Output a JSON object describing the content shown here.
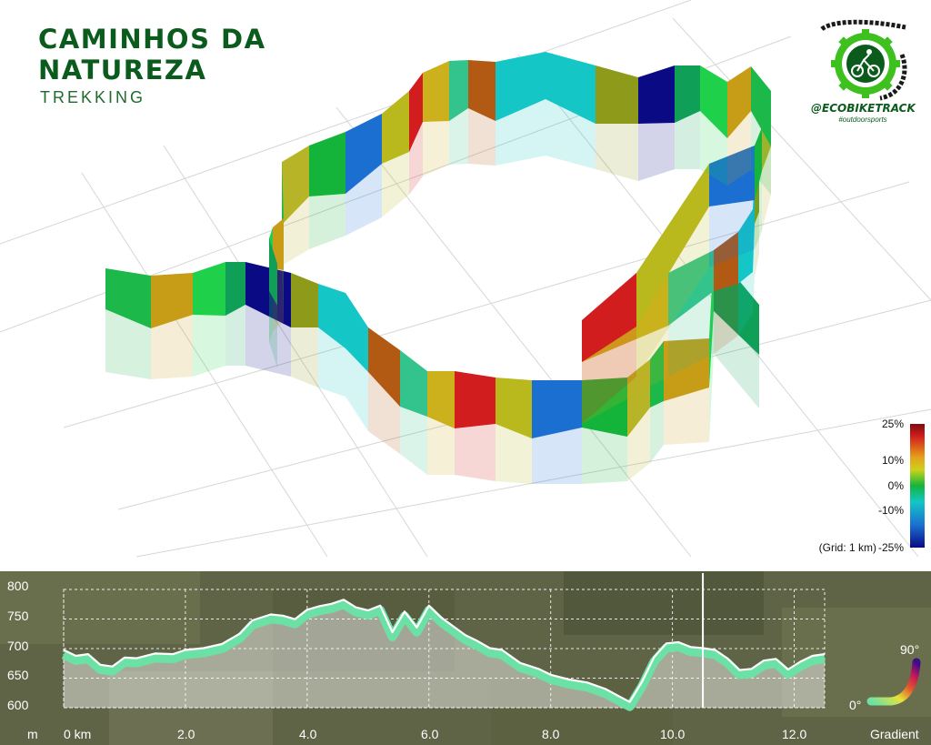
{
  "header": {
    "title_line1": "CAMINHOS DA",
    "title_line2": "NATUREZA",
    "subtitle": "TREKKING"
  },
  "logo": {
    "icon": "cyclist-gear-chain-icon",
    "handle": "@ECOBIKETRACK",
    "tagline": "#outdoorsports",
    "color": "#0b5b1d",
    "accent": "#3ec11f"
  },
  "legend": {
    "labels": [
      "25%",
      "10%",
      "0%",
      "-10%",
      "-25%"
    ],
    "grid_note": "(Grid: 1 km)"
  },
  "profile": {
    "y_unit": "m",
    "x_unit_label": "Gradient",
    "gradient_min_label": "0°",
    "gradient_max_label": "90°",
    "fill_color": "#6be1a6",
    "outline_color": "#ffffff"
  },
  "chart_data": {
    "type": "area",
    "title": "",
    "xlabel": "km",
    "ylabel": "m",
    "xlim": [
      0,
      12.5
    ],
    "ylim": [
      600,
      800
    ],
    "x_ticks": [
      "0 km",
      "2.0",
      "4.0",
      "6.0",
      "8.0",
      "10.0",
      "12.0"
    ],
    "y_ticks": [
      "800",
      "750",
      "700",
      "650",
      "600"
    ],
    "marker_km": 10.5,
    "grid": true,
    "series": [
      {
        "x": [
          0,
          0.2,
          0.4,
          0.6,
          0.8,
          1.0,
          1.2,
          1.5,
          1.8,
          2.0,
          2.3,
          2.6,
          2.9,
          3.1,
          3.4,
          3.6,
          3.8,
          4.0,
          4.2,
          4.4,
          4.6,
          4.8,
          5.0,
          5.2,
          5.4,
          5.6,
          5.8,
          6.0,
          6.2,
          6.4,
          6.6,
          6.8,
          7.0,
          7.2,
          7.5,
          7.8,
          8.0,
          8.3,
          8.6,
          8.9,
          9.1,
          9.3,
          9.5,
          9.7,
          9.9,
          10.1,
          10.3,
          10.5,
          10.7,
          10.9,
          11.1,
          11.3,
          11.5,
          11.7,
          11.9,
          12.1,
          12.3,
          12.5
        ],
        "y": [
          690,
          680,
          683,
          665,
          662,
          677,
          676,
          684,
          683,
          690,
          693,
          700,
          718,
          740,
          750,
          748,
          742,
          758,
          764,
          768,
          775,
          762,
          757,
          765,
          720,
          755,
          728,
          765,
          745,
          730,
          715,
          705,
          693,
          690,
          668,
          658,
          648,
          640,
          635,
          624,
          613,
          602,
          636,
          678,
          701,
          703,
          695,
          693,
          690,
          676,
          656,
          658,
          672,
          675,
          657,
          670,
          680,
          683
        ]
      }
    ]
  }
}
